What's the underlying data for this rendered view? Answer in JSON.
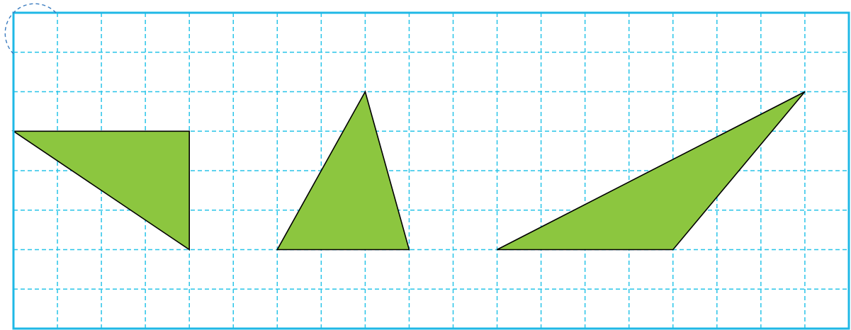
{
  "diagram": {
    "type": "grid-with-triangles",
    "grid": {
      "columns": 19,
      "rows": 8,
      "line_style": "dashed",
      "line_color": "#29c4e8",
      "border_color": "#1fb8e6"
    },
    "corner_marker": {
      "style": "dashed-circle",
      "color": "#3a7bbf"
    },
    "shapes": [
      {
        "name": "triangle-right",
        "fill": "#8cc63f",
        "stroke": "#000000",
        "vertices_grid": [
          [
            0,
            3
          ],
          [
            4,
            3
          ],
          [
            4,
            6
          ]
        ]
      },
      {
        "name": "triangle-acute",
        "fill": "#8cc63f",
        "stroke": "#000000",
        "vertices_grid": [
          [
            8,
            2
          ],
          [
            6,
            6
          ],
          [
            9,
            6
          ]
        ]
      },
      {
        "name": "triangle-obtuse",
        "fill": "#8cc63f",
        "stroke": "#000000",
        "vertices_grid": [
          [
            18,
            2
          ],
          [
            11,
            6
          ],
          [
            15,
            6
          ]
        ]
      }
    ]
  }
}
